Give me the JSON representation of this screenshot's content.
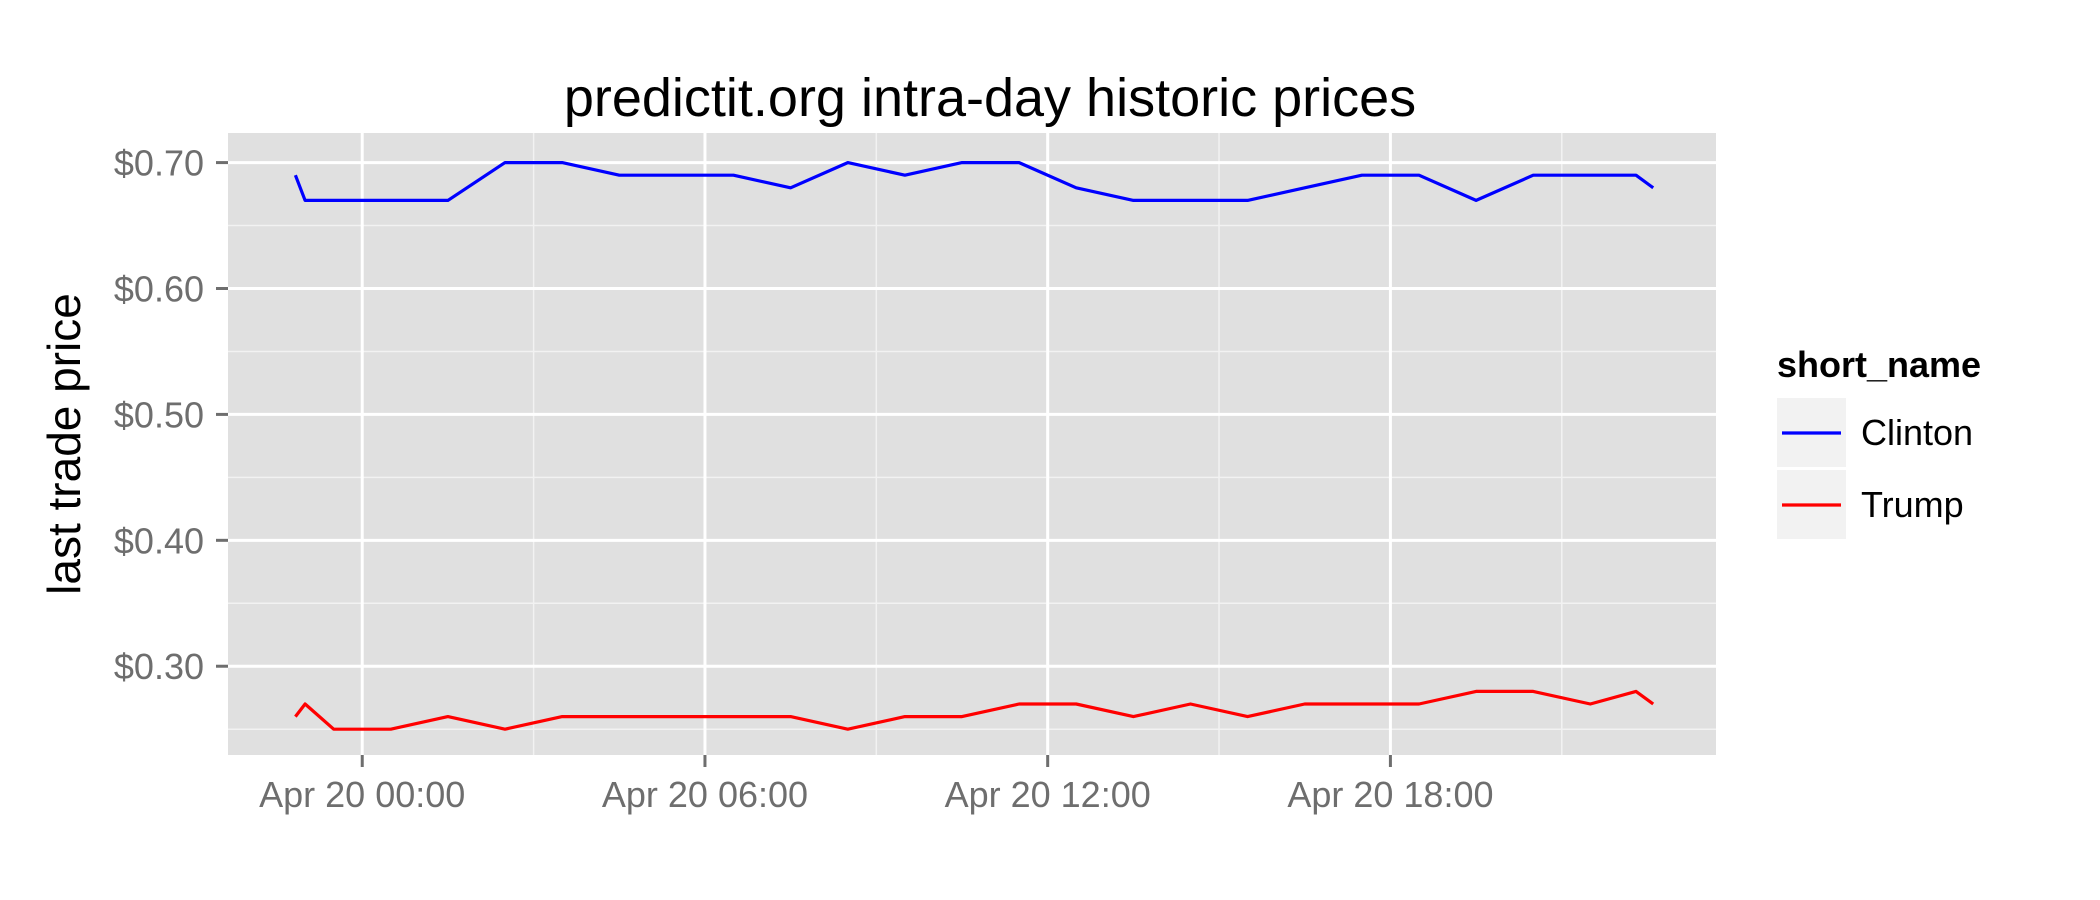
{
  "chart_data": {
    "type": "line",
    "title": "predictit.org intra-day historic prices",
    "xlabel": "",
    "ylabel": "last trade price",
    "x_unit": "hours",
    "xlim": [
      -2.35,
      23.7
    ],
    "ylim": [
      0.2295,
      0.7235
    ],
    "y_ticks": [
      0.3,
      0.4,
      0.5,
      0.6,
      0.7
    ],
    "y_tick_labels": [
      "$0.30",
      "$0.40",
      "$0.50",
      "$0.60",
      "$0.70"
    ],
    "x_ticks": [
      0,
      6,
      12,
      18
    ],
    "x_tick_labels": [
      "Apr 20 00:00",
      "Apr 20 06:00",
      "Apr 20 12:00",
      "Apr 20 18:00"
    ],
    "grid": true,
    "legend": {
      "title": "short_name",
      "position": "right"
    },
    "series": [
      {
        "name": "Clinton",
        "color": "#0000ff",
        "x": [
          -1.17,
          -1.0,
          -0.5,
          0.5,
          1.5,
          2.5,
          3.5,
          4.5,
          5.5,
          6.5,
          7.5,
          8.5,
          9.5,
          10.5,
          11.5,
          12.5,
          13.5,
          14.5,
          15.5,
          16.5,
          17.5,
          18.5,
          19.5,
          20.5,
          21.5,
          22.3,
          22.6
        ],
        "y": [
          0.69,
          0.67,
          0.67,
          0.67,
          0.67,
          0.7,
          0.7,
          0.69,
          0.69,
          0.69,
          0.68,
          0.7,
          0.69,
          0.7,
          0.7,
          0.68,
          0.67,
          0.67,
          0.67,
          0.68,
          0.69,
          0.69,
          0.67,
          0.69,
          0.69,
          0.69,
          0.68
        ]
      },
      {
        "name": "Trump",
        "color": "#ff0000",
        "x": [
          -1.17,
          -1.0,
          -0.5,
          0.5,
          1.5,
          2.5,
          3.5,
          4.5,
          5.5,
          6.5,
          7.5,
          8.5,
          9.5,
          10.5,
          11.5,
          12.5,
          13.5,
          14.5,
          15.5,
          16.5,
          17.5,
          18.5,
          19.5,
          20.5,
          21.5,
          22.3,
          22.6
        ],
        "y": [
          0.26,
          0.27,
          0.25,
          0.25,
          0.26,
          0.25,
          0.26,
          0.26,
          0.26,
          0.26,
          0.26,
          0.25,
          0.26,
          0.26,
          0.27,
          0.27,
          0.26,
          0.27,
          0.26,
          0.27,
          0.27,
          0.27,
          0.28,
          0.28,
          0.27,
          0.28,
          0.27
        ]
      }
    ]
  }
}
